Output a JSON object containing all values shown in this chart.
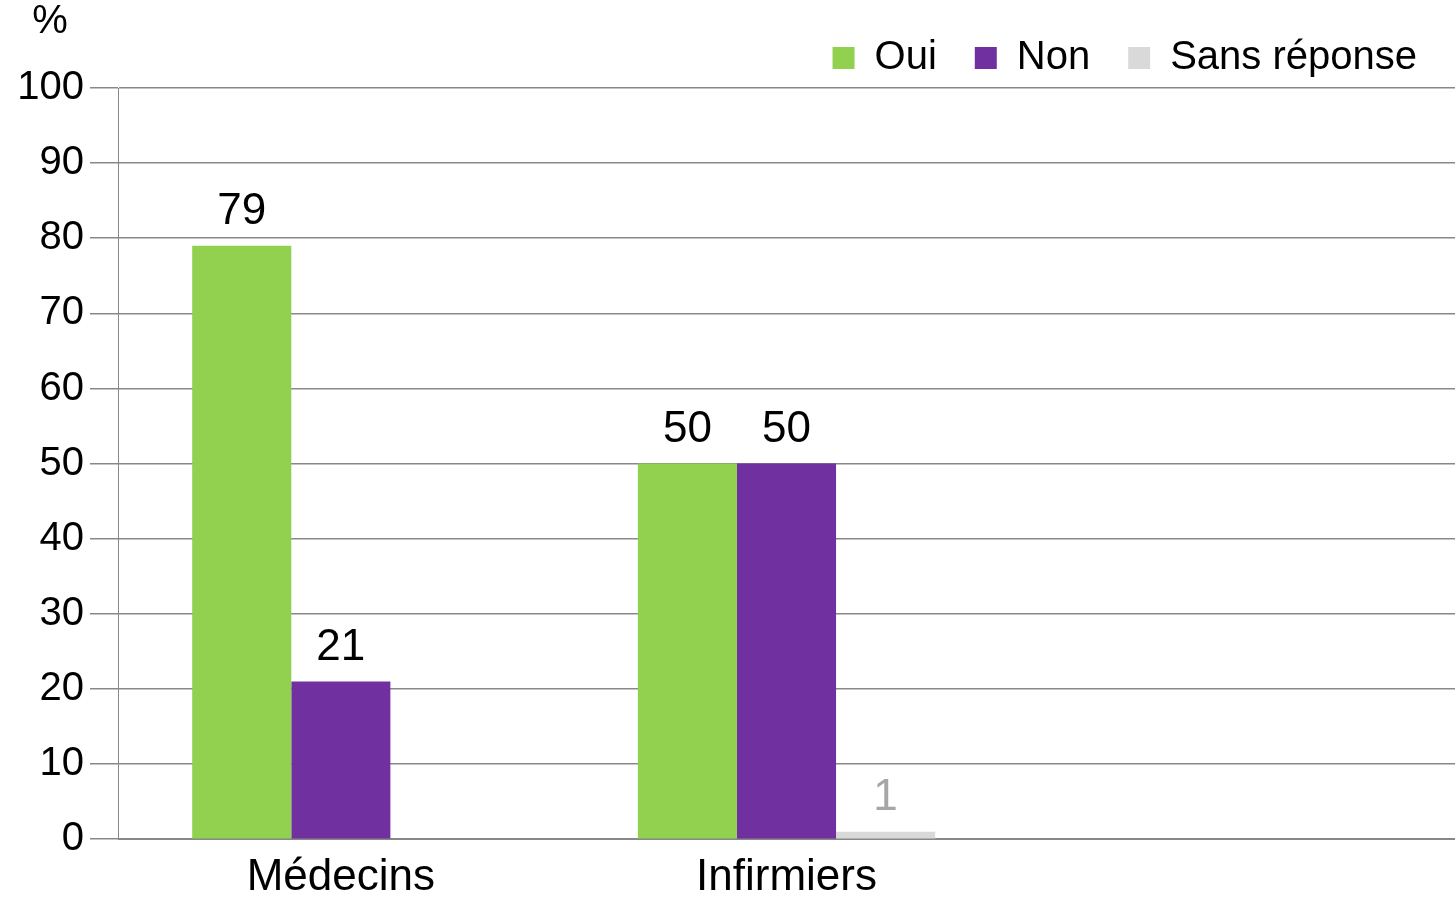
{
  "chart_data": {
    "type": "bar",
    "ylabel": "%",
    "categories": [
      "Médecins",
      "Infirmiers",
      null
    ],
    "series": [
      {
        "name": "Oui",
        "color": "#92d050",
        "values": [
          79,
          50,
          null
        ]
      },
      {
        "name": "Non",
        "color": "#7030a0",
        "values": [
          21,
          50,
          null
        ]
      },
      {
        "name": "Sans réponse",
        "color": "#d9d9d9",
        "values": [
          null,
          1,
          null
        ]
      }
    ],
    "ylim": [
      0,
      100
    ],
    "yticks": [
      0,
      10,
      20,
      30,
      40,
      50,
      60,
      70,
      80,
      90,
      100
    ],
    "grid": "y",
    "legend": "top right",
    "data_labels": true
  }
}
